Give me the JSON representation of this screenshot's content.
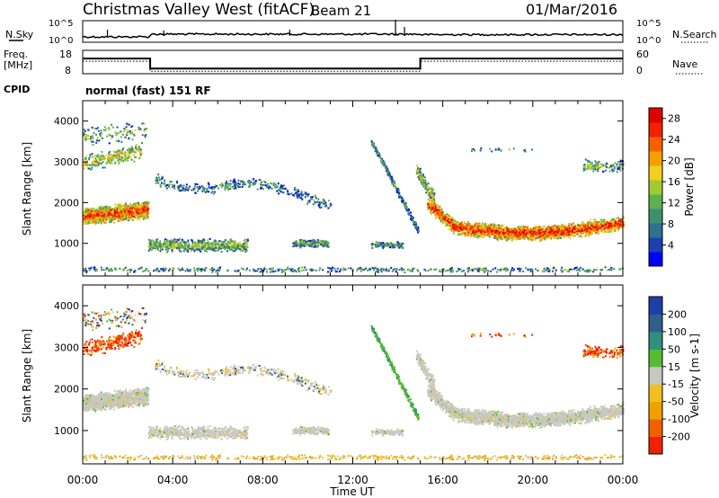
{
  "header": {
    "station": "Christmas Valley West (fitACF)",
    "beam": "Beam 21",
    "date": "01/Mar/2016"
  },
  "noise_panel": {
    "left_label": "N.Sky",
    "right_label": "N.Search",
    "ticks_left": [
      "10^5",
      "10^0"
    ],
    "ticks_right": [
      "10^5",
      "10^0"
    ]
  },
  "freq_panel": {
    "left_label_line1": "Freq.",
    "left_label_line2": "[MHz]",
    "right_label": "Nave",
    "ticks_left": [
      "18",
      "8"
    ],
    "ticks_right": [
      "60",
      "0"
    ]
  },
  "cpid": {
    "label": "CPID",
    "text": "normal (fast) 151 RF"
  },
  "chart_data": [
    {
      "type": "heatmap",
      "title": "",
      "quantity": "Power",
      "ylabel": "Slant Range [km]",
      "xlabel": "Time UT",
      "xlim": [
        "00:00",
        "24:00"
      ],
      "ylim": [
        200,
        4500
      ],
      "x_ticks": [
        "00:00",
        "04:00",
        "08:00",
        "12:00",
        "16:00",
        "20:00",
        "00:00"
      ],
      "y_ticks": [
        "1000",
        "2000",
        "3000",
        "4000"
      ],
      "colorbar": {
        "label": "Power [dB]",
        "ticks": [
          "4",
          "8",
          "12",
          "16",
          "20",
          "24",
          "28"
        ],
        "range": [
          0,
          30
        ],
        "colors": [
          "#0000ff",
          "#1f3fb0",
          "#2f6f8f",
          "#3f8f6f",
          "#5fb050",
          "#a0cc30",
          "#f0d020",
          "#f5a000",
          "#f56000",
          "#f02000",
          "#e00000"
        ]
      }
    },
    {
      "type": "heatmap",
      "title": "",
      "quantity": "Velocity",
      "ylabel": "Slant Range [km]",
      "xlabel": "Time UT",
      "xlim": [
        "00:00",
        "24:00"
      ],
      "ylim": [
        200,
        4500
      ],
      "x_ticks": [
        "00:00",
        "04:00",
        "08:00",
        "12:00",
        "16:00",
        "20:00",
        "00:00"
      ],
      "y_ticks": [
        "1000",
        "2000",
        "3000",
        "4000"
      ],
      "colorbar": {
        "label": "Velocity [m s-1]",
        "ticks": [
          "200",
          "100",
          "50",
          "15",
          "-15",
          "-50",
          "-100",
          "-200"
        ],
        "colors": [
          "#1f3fa8",
          "#305e8c",
          "#2f8f7f",
          "#55bb33",
          "#c8c8c0",
          "#f0c020",
          "#f0a000",
          "#f06000",
          "#f02000"
        ]
      }
    }
  ],
  "frequency_series": {
    "times_ut_h": [
      0,
      3,
      3,
      15,
      15,
      24
    ],
    "freq_mhz": [
      14.5,
      14.5,
      10.2,
      10.2,
      14.5,
      14.5
    ]
  }
}
